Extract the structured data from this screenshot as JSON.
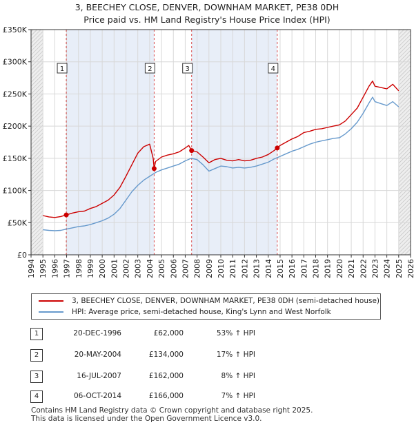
{
  "title": {
    "line1": "3, BEECHEY CLOSE, DENVER, DOWNHAM MARKET, PE38 0DH",
    "line2": "Price paid vs. HM Land Registry's House Price Index (HPI)"
  },
  "colors": {
    "property": "#cc0000",
    "hpi": "#6699cc",
    "band": "#e8eef8",
    "marker_line": "#cc0000"
  },
  "legend": {
    "property_label": "3, BEECHEY CLOSE, DENVER, DOWNHAM MARKET, PE38 0DH (semi-detached house)",
    "hpi_label": "HPI: Average price, semi-detached house, King's Lynn and West Norfolk"
  },
  "sales": [
    {
      "num": "1",
      "date": "20-DEC-1996",
      "price": "£62,000",
      "hpi": "53% ↑ HPI"
    },
    {
      "num": "2",
      "date": "20-MAY-2004",
      "price": "£134,000",
      "hpi": "17% ↑ HPI"
    },
    {
      "num": "3",
      "date": "16-JUL-2007",
      "price": "£162,000",
      "hpi": "8% ↑ HPI"
    },
    {
      "num": "4",
      "date": "06-OCT-2014",
      "price": "£166,000",
      "hpi": "7% ↑ HPI"
    }
  ],
  "footer": {
    "line1": "Contains HM Land Registry data © Crown copyright and database right 2025.",
    "line2": "This data is licensed under the Open Government Licence v3.0."
  },
  "chart_data": {
    "type": "line",
    "title": "3, BEECHEY CLOSE, DENVER, DOWNHAM MARKET, PE38 0DH — Price paid vs. HM Land Registry's House Price Index (HPI)",
    "xlabel": "",
    "ylabel": "",
    "xlim": [
      1994,
      2026
    ],
    "ylim": [
      0,
      350000
    ],
    "x_ticks": [
      1994,
      1995,
      1996,
      1997,
      1998,
      1999,
      2000,
      2001,
      2002,
      2003,
      2004,
      2005,
      2006,
      2007,
      2008,
      2009,
      2010,
      2011,
      2012,
      2013,
      2014,
      2015,
      2016,
      2017,
      2018,
      2019,
      2020,
      2021,
      2022,
      2023,
      2024,
      2025,
      2026
    ],
    "y_ticks": [
      0,
      50000,
      100000,
      150000,
      200000,
      250000,
      300000,
      350000
    ],
    "y_tick_labels": [
      "£0",
      "£50K",
      "£100K",
      "£150K",
      "£200K",
      "£250K",
      "£300K",
      "£350K"
    ],
    "grid": true,
    "shaded_bands": [
      {
        "from": 1994,
        "to": 1995,
        "note": "no data (start)"
      },
      {
        "from": 1996.97,
        "to": 2004.38
      },
      {
        "from": 2007.54,
        "to": 2014.76
      },
      {
        "from": 2025.0,
        "to": 2026.0,
        "note": "hatched future"
      }
    ],
    "series": [
      {
        "name": "3, BEECHEY CLOSE, DENVER, DOWNHAM MARKET, PE38 0DH (semi-detached house)",
        "color": "#cc0000",
        "x": [
          1995.0,
          1995.5,
          1996.0,
          1996.5,
          1996.97,
          1997.5,
          1998.0,
          1998.5,
          1999.0,
          1999.5,
          2000.0,
          2000.5,
          2001.0,
          2001.5,
          2002.0,
          2002.5,
          2003.0,
          2003.5,
          2004.0,
          2004.3,
          2004.38,
          2004.5,
          2005.0,
          2005.5,
          2006.0,
          2006.5,
          2007.0,
          2007.3,
          2007.54,
          2008.0,
          2008.5,
          2009.0,
          2009.5,
          2010.0,
          2010.5,
          2011.0,
          2011.5,
          2012.0,
          2012.5,
          2013.0,
          2013.5,
          2014.0,
          2014.5,
          2014.76,
          2015.0,
          2015.5,
          2016.0,
          2016.5,
          2017.0,
          2017.5,
          2018.0,
          2018.5,
          2019.0,
          2019.5,
          2020.0,
          2020.5,
          2021.0,
          2021.5,
          2022.0,
          2022.5,
          2022.8,
          2023.0,
          2023.5,
          2024.0,
          2024.5,
          2025.0
        ],
        "y": [
          61000,
          59000,
          58000,
          59500,
          62000,
          65000,
          67000,
          68000,
          72000,
          75000,
          80000,
          85000,
          93000,
          105000,
          122000,
          140000,
          158000,
          168000,
          172000,
          150000,
          134000,
          145000,
          152000,
          155000,
          157000,
          160000,
          166000,
          170000,
          162000,
          160000,
          152000,
          143000,
          148000,
          150000,
          147000,
          146000,
          148000,
          146000,
          147000,
          150000,
          152000,
          156000,
          162000,
          166000,
          170000,
          175000,
          180000,
          184000,
          190000,
          192000,
          195000,
          196000,
          198000,
          200000,
          202000,
          208000,
          218000,
          228000,
          245000,
          262000,
          270000,
          262000,
          260000,
          258000,
          265000,
          255000
        ]
      },
      {
        "name": "HPI: Average price, semi-detached house, King's Lynn and West Norfolk",
        "color": "#6699cc",
        "x": [
          1995.0,
          1995.5,
          1996.0,
          1996.5,
          1997.0,
          1997.5,
          1998.0,
          1998.5,
          1999.0,
          1999.5,
          2000.0,
          2000.5,
          2001.0,
          2001.5,
          2002.0,
          2002.5,
          2003.0,
          2003.5,
          2004.0,
          2004.5,
          2005.0,
          2005.5,
          2006.0,
          2006.5,
          2007.0,
          2007.5,
          2008.0,
          2008.5,
          2009.0,
          2009.5,
          2010.0,
          2010.5,
          2011.0,
          2011.5,
          2012.0,
          2012.5,
          2013.0,
          2013.5,
          2014.0,
          2014.5,
          2015.0,
          2015.5,
          2016.0,
          2016.5,
          2017.0,
          2017.5,
          2018.0,
          2018.5,
          2019.0,
          2019.5,
          2020.0,
          2020.5,
          2021.0,
          2021.5,
          2022.0,
          2022.5,
          2022.8,
          2023.0,
          2023.5,
          2024.0,
          2024.5,
          2025.0
        ],
        "y": [
          39000,
          38000,
          37500,
          38000,
          40000,
          42000,
          44000,
          45000,
          47000,
          50000,
          53000,
          57000,
          63000,
          72000,
          85000,
          98000,
          108000,
          116000,
          122000,
          128000,
          132000,
          135000,
          138000,
          141000,
          146000,
          150000,
          148000,
          140000,
          130000,
          134000,
          138000,
          137000,
          135000,
          136000,
          135000,
          136000,
          138000,
          141000,
          144000,
          149000,
          153000,
          157000,
          161000,
          164000,
          168000,
          172000,
          175000,
          177000,
          179000,
          181000,
          182000,
          188000,
          196000,
          206000,
          220000,
          236000,
          245000,
          238000,
          235000,
          232000,
          238000,
          230000
        ]
      }
    ],
    "sale_markers": [
      {
        "label": "1",
        "x": 1996.97,
        "y": 62000
      },
      {
        "label": "2",
        "x": 2004.38,
        "y": 134000
      },
      {
        "label": "3",
        "x": 2007.54,
        "y": 162000
      },
      {
        "label": "4",
        "x": 2014.76,
        "y": 166000
      }
    ]
  }
}
